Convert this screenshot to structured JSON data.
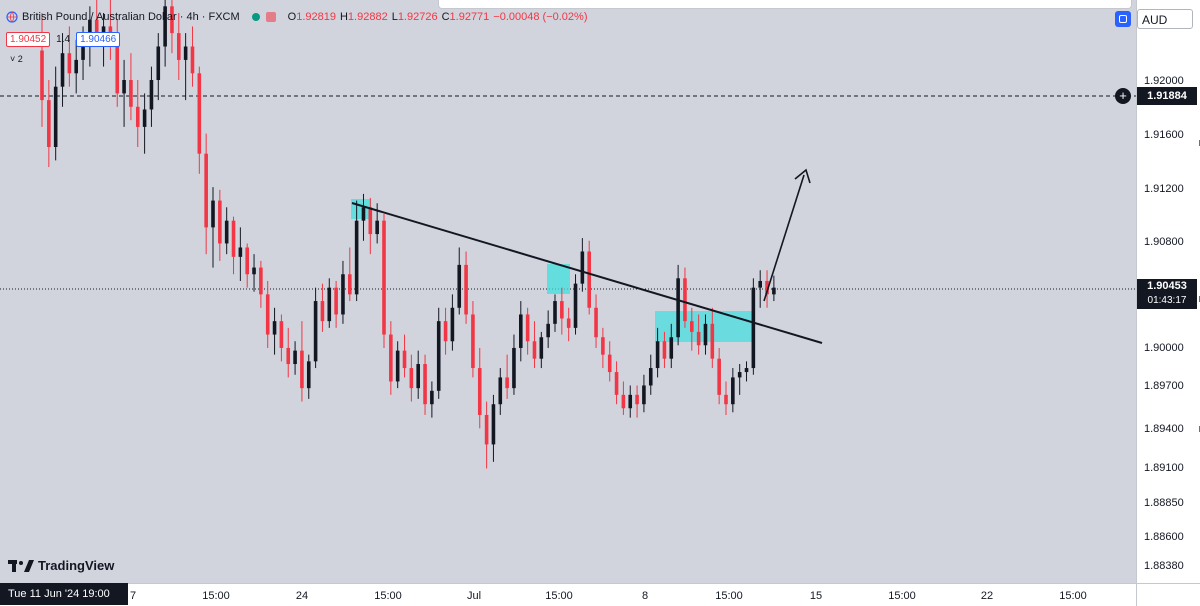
{
  "legend": {
    "title": "British Pound / Australian Dollar · 4h · FXCM",
    "open_label": "O",
    "open": "1.92819",
    "high_label": "H",
    "high": "1.92882",
    "low_label": "L",
    "low": "1.92726",
    "close_label": "C",
    "close": "1.92771",
    "change": "−0.00048 (−0.02%)"
  },
  "quote": {
    "bid": "1.90452",
    "spread": "1.4",
    "ask": "1.90466"
  },
  "indicator_toggle": "˅ 2",
  "currency": "AUD",
  "crosshair_price": "1.91884",
  "last_price": "1.90453",
  "countdown": "01:43:17",
  "cursor_date": "Tue 11 Jun '24   19:00",
  "watermark": "TradingView",
  "colors": {
    "bull": "#131722",
    "bear": "#f23645",
    "zone": "#3fe0e0",
    "background": "#d1d4dc"
  },
  "chart_data": {
    "type": "candlestick",
    "price_axis": {
      "min": 1.8838,
      "max": 1.92,
      "ticks": [
        "1.92000",
        "1.91600",
        "1.91200",
        "1.90800",
        "1.90000",
        "1.89700",
        "1.89400",
        "1.89100",
        "1.88850",
        "1.88600",
        "1.88380"
      ]
    },
    "time_axis": {
      "ticks": [
        "7",
        "15:00",
        "24",
        "15:00",
        "Jul",
        "15:00",
        "8",
        "15:00",
        "15",
        "15:00",
        "22",
        "15:00"
      ]
    },
    "candles": [
      [
        1.9222,
        1.925,
        1.9165,
        1.9185
      ],
      [
        1.9185,
        1.92,
        1.9135,
        1.915
      ],
      [
        1.915,
        1.921,
        1.914,
        1.9195
      ],
      [
        1.9195,
        1.9235,
        1.918,
        1.922
      ],
      [
        1.922,
        1.924,
        1.9195,
        1.9205
      ],
      [
        1.9205,
        1.923,
        1.919,
        1.9215
      ],
      [
        1.9215,
        1.924,
        1.92,
        1.923
      ],
      [
        1.923,
        1.9255,
        1.921,
        1.9245
      ],
      [
        1.9245,
        1.926,
        1.9225,
        1.9235
      ],
      [
        1.9235,
        1.925,
        1.921,
        1.924
      ],
      [
        1.924,
        1.926,
        1.9215,
        1.9225
      ],
      [
        1.9225,
        1.9245,
        1.918,
        1.919
      ],
      [
        1.919,
        1.9215,
        1.9165,
        1.92
      ],
      [
        1.92,
        1.922,
        1.917,
        1.918
      ],
      [
        1.918,
        1.92,
        1.915,
        1.9165
      ],
      [
        1.9165,
        1.919,
        1.9145,
        1.9178
      ],
      [
        1.9178,
        1.921,
        1.9165,
        1.92
      ],
      [
        1.92,
        1.9235,
        1.9185,
        1.9225
      ],
      [
        1.9225,
        1.927,
        1.921,
        1.9255
      ],
      [
        1.9255,
        1.9265,
        1.922,
        1.9235
      ],
      [
        1.9235,
        1.925,
        1.92,
        1.9215
      ],
      [
        1.9215,
        1.9235,
        1.9185,
        1.9225
      ],
      [
        1.9225,
        1.924,
        1.9195,
        1.9205
      ],
      [
        1.9205,
        1.921,
        1.913,
        1.9145
      ],
      [
        1.9145,
        1.916,
        1.907,
        1.909
      ],
      [
        1.909,
        1.912,
        1.906,
        1.911
      ],
      [
        1.911,
        1.9118,
        1.9065,
        1.9078
      ],
      [
        1.9078,
        1.9105,
        1.907,
        1.9095
      ],
      [
        1.9095,
        1.9098,
        1.9055,
        1.9068
      ],
      [
        1.9068,
        1.909,
        1.905,
        1.9075
      ],
      [
        1.9075,
        1.9078,
        1.9045,
        1.9055
      ],
      [
        1.9055,
        1.907,
        1.9042,
        1.906
      ],
      [
        1.906,
        1.9065,
        1.903,
        1.904
      ],
      [
        1.904,
        1.905,
        1.9,
        1.901
      ],
      [
        1.901,
        1.903,
        1.8995,
        1.902
      ],
      [
        1.902,
        1.9025,
        1.899,
        1.9
      ],
      [
        1.9,
        1.9015,
        1.8978,
        1.8988
      ],
      [
        1.8988,
        1.9005,
        1.898,
        1.8998
      ],
      [
        1.8998,
        1.902,
        1.896,
        1.897
      ],
      [
        1.897,
        1.8995,
        1.8962,
        1.899
      ],
      [
        1.899,
        1.9045,
        1.8985,
        1.9035
      ],
      [
        1.9035,
        1.9048,
        1.9012,
        1.902
      ],
      [
        1.902,
        1.9052,
        1.9015,
        1.9045
      ],
      [
        1.9045,
        1.905,
        1.9015,
        1.9025
      ],
      [
        1.9025,
        1.9065,
        1.9018,
        1.9055
      ],
      [
        1.9055,
        1.9075,
        1.9035,
        1.904
      ],
      [
        1.904,
        1.911,
        1.9035,
        1.9095
      ],
      [
        1.9095,
        1.9115,
        1.908,
        1.9105
      ],
      [
        1.9105,
        1.9112,
        1.907,
        1.9085
      ],
      [
        1.9085,
        1.9108,
        1.9078,
        1.9095
      ],
      [
        1.9095,
        1.91,
        1.9,
        1.901
      ],
      [
        1.901,
        1.902,
        1.8965,
        1.8975
      ],
      [
        1.8975,
        1.9005,
        1.897,
        1.8998
      ],
      [
        1.8998,
        1.901,
        1.8978,
        1.8985
      ],
      [
        1.8985,
        1.8995,
        1.896,
        1.897
      ],
      [
        1.897,
        1.8998,
        1.8962,
        1.8988
      ],
      [
        1.8988,
        1.8995,
        1.895,
        1.8958
      ],
      [
        1.8958,
        1.8975,
        1.8948,
        1.8968
      ],
      [
        1.8968,
        1.903,
        1.8962,
        1.902
      ],
      [
        1.902,
        1.903,
        1.8995,
        1.9005
      ],
      [
        1.9005,
        1.904,
        1.8998,
        1.903
      ],
      [
        1.903,
        1.9075,
        1.9025,
        1.9062
      ],
      [
        1.9062,
        1.9072,
        1.9018,
        1.9025
      ],
      [
        1.9025,
        1.9035,
        1.8978,
        1.8985
      ],
      [
        1.8985,
        1.9,
        1.894,
        1.895
      ],
      [
        1.895,
        1.896,
        1.891,
        1.8928
      ],
      [
        1.8928,
        1.8965,
        1.8915,
        1.8958
      ],
      [
        1.8958,
        1.8985,
        1.895,
        1.8978
      ],
      [
        1.8978,
        1.8995,
        1.8962,
        1.897
      ],
      [
        1.897,
        1.901,
        1.8965,
        1.9
      ],
      [
        1.9,
        1.9035,
        1.899,
        1.9025
      ],
      [
        1.9025,
        1.903,
        1.8995,
        1.9005
      ],
      [
        1.9005,
        1.902,
        1.8985,
        1.8992
      ],
      [
        1.8992,
        1.9012,
        1.8985,
        1.9008
      ],
      [
        1.9008,
        1.9028,
        1.9,
        1.9018
      ],
      [
        1.9018,
        1.904,
        1.9012,
        1.9035
      ],
      [
        1.9035,
        1.9045,
        1.901,
        1.9022
      ],
      [
        1.9022,
        1.903,
        1.9005,
        1.9015
      ],
      [
        1.9015,
        1.9055,
        1.901,
        1.9048
      ],
      [
        1.9048,
        1.9082,
        1.9042,
        1.9072
      ],
      [
        1.9072,
        1.908,
        1.9025,
        1.903
      ],
      [
        1.903,
        1.904,
        1.9,
        1.9008
      ],
      [
        1.9008,
        1.9015,
        1.8985,
        1.8995
      ],
      [
        1.8995,
        1.9005,
        1.8975,
        1.8982
      ],
      [
        1.8982,
        1.899,
        1.8958,
        1.8965
      ],
      [
        1.8965,
        1.8975,
        1.895,
        1.8955
      ],
      [
        1.8955,
        1.8972,
        1.8948,
        1.8965
      ],
      [
        1.8965,
        1.8972,
        1.8948,
        1.8958
      ],
      [
        1.8958,
        1.898,
        1.8952,
        1.8972
      ],
      [
        1.8972,
        1.8995,
        1.8965,
        1.8985
      ],
      [
        1.8985,
        1.9015,
        1.8978,
        1.9005
      ],
      [
        1.9005,
        1.9012,
        1.8985,
        1.8992
      ],
      [
        1.8992,
        1.9018,
        1.8985,
        1.9008
      ],
      [
        1.9008,
        1.9062,
        1.9002,
        1.9052
      ],
      [
        1.9052,
        1.906,
        1.9015,
        1.902
      ],
      [
        1.902,
        1.903,
        1.8998,
        1.9012
      ],
      [
        1.9012,
        1.9025,
        1.8995,
        1.9002
      ],
      [
        1.9002,
        1.9025,
        1.8995,
        1.9018
      ],
      [
        1.9018,
        1.903,
        1.8985,
        1.8992
      ],
      [
        1.8992,
        1.9,
        1.8958,
        1.8965
      ],
      [
        1.8965,
        1.8975,
        1.895,
        1.8958
      ],
      [
        1.8958,
        1.8985,
        1.8952,
        1.8978
      ],
      [
        1.8978,
        1.8988,
        1.8965,
        1.8982
      ],
      [
        1.8982,
        1.899,
        1.8975,
        1.8985
      ],
      [
        1.8985,
        1.9052,
        1.898,
        1.9045
      ],
      [
        1.9045,
        1.9058,
        1.903,
        1.905
      ],
      [
        1.905,
        1.9058,
        1.903,
        1.904
      ],
      [
        1.904,
        1.9054,
        1.9035,
        1.9045
      ]
    ]
  }
}
